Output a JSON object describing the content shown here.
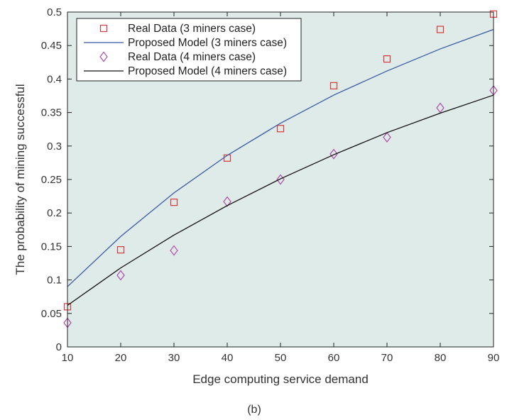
{
  "chart_data": {
    "type": "line",
    "title": "",
    "caption": "(b)",
    "xlabel": "Edge computing service demand",
    "ylabel": "The probability of mining successful",
    "xlim": [
      10,
      90
    ],
    "ylim": [
      0,
      0.5
    ],
    "x_ticks": [
      "10",
      "20",
      "30",
      "40",
      "50",
      "60",
      "70",
      "80",
      "90"
    ],
    "y_ticks": [
      "0",
      "0.05",
      "0.1",
      "0.15",
      "0.2",
      "0.25",
      "0.3",
      "0.35",
      "0.4",
      "0.45",
      "0.5"
    ],
    "x": [
      10,
      20,
      30,
      40,
      50,
      60,
      70,
      80,
      90
    ],
    "grid": false,
    "legend_position": "top-left",
    "background_color": "#dfebe8",
    "series": [
      {
        "name": "Real Data (3 miners case)",
        "kind": "scatter",
        "marker": "square",
        "color": "#d63a3a",
        "values": [
          0.06,
          0.145,
          0.216,
          0.282,
          0.326,
          0.39,
          0.43,
          0.474,
          0.497
        ]
      },
      {
        "name": "Proposed Model (3 miners case)",
        "kind": "line",
        "color": "#3b5ba8",
        "values": [
          0.09,
          0.165,
          0.23,
          0.286,
          0.334,
          0.376,
          0.412,
          0.445,
          0.474
        ]
      },
      {
        "name": "Real Data (4 miners case)",
        "kind": "scatter",
        "marker": "diamond",
        "color": "#b04ca8",
        "values": [
          0.036,
          0.107,
          0.144,
          0.217,
          0.25,
          0.288,
          0.313,
          0.357,
          0.383
        ]
      },
      {
        "name": "Proposed Model (4 miners case)",
        "kind": "line",
        "color": "#111111",
        "values": [
          0.062,
          0.118,
          0.167,
          0.211,
          0.251,
          0.287,
          0.32,
          0.349,
          0.376
        ]
      }
    ]
  }
}
